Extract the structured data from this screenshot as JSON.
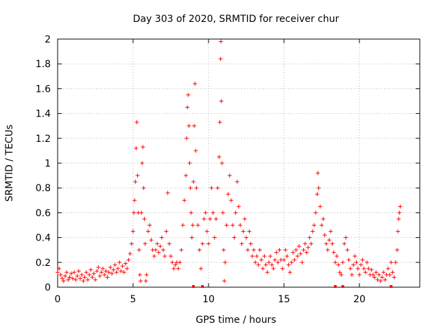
{
  "chart_data": {
    "type": "scatter",
    "title": "Day 303 of 2020, SRMTID for receiver chur",
    "xlabel": "GPS time / hours",
    "ylabel": "SRMTID / TECUs",
    "xlim": [
      0,
      24
    ],
    "ylim": [
      0,
      2
    ],
    "xticks": [
      0,
      5,
      10,
      15,
      20
    ],
    "xtick_labels": [
      "0",
      "5",
      "10",
      "15",
      "20"
    ],
    "yticks": [
      0,
      0.2,
      0.4,
      0.6,
      0.8,
      1,
      1.2,
      1.4,
      1.6,
      1.8,
      2
    ],
    "ytick_labels": [
      "0",
      "0.2",
      "0.4",
      "0.6",
      "0.8",
      "1",
      "1.2",
      "1.4",
      "1.6",
      "1.8",
      "2"
    ],
    "grid": true,
    "marker": "+",
    "series_color": "#ff0000",
    "series": [
      {
        "name": "SRMTID",
        "points": [
          [
            0.0,
            0.12
          ],
          [
            0.1,
            0.15
          ],
          [
            0.2,
            0.1
          ],
          [
            0.3,
            0.07
          ],
          [
            0.4,
            0.05
          ],
          [
            0.5,
            0.09
          ],
          [
            0.6,
            0.12
          ],
          [
            0.7,
            0.06
          ],
          [
            0.8,
            0.08
          ],
          [
            0.9,
            0.11
          ],
          [
            1.0,
            0.07
          ],
          [
            1.1,
            0.12
          ],
          [
            1.2,
            0.06
          ],
          [
            1.3,
            0.09
          ],
          [
            1.4,
            0.13
          ],
          [
            1.5,
            0.07
          ],
          [
            1.6,
            0.1
          ],
          [
            1.7,
            0.05
          ],
          [
            1.8,
            0.08
          ],
          [
            1.9,
            0.12
          ],
          [
            2.0,
            0.06
          ],
          [
            2.1,
            0.1
          ],
          [
            2.2,
            0.14
          ],
          [
            2.3,
            0.08
          ],
          [
            2.4,
            0.11
          ],
          [
            2.5,
            0.06
          ],
          [
            2.6,
            0.13
          ],
          [
            2.7,
            0.16
          ],
          [
            2.8,
            0.09
          ],
          [
            2.9,
            0.12
          ],
          [
            3.0,
            0.15
          ],
          [
            3.1,
            0.1
          ],
          [
            3.2,
            0.13
          ],
          [
            3.3,
            0.08
          ],
          [
            3.4,
            0.12
          ],
          [
            3.5,
            0.16
          ],
          [
            3.6,
            0.11
          ],
          [
            3.7,
            0.14
          ],
          [
            3.8,
            0.18
          ],
          [
            3.9,
            0.12
          ],
          [
            4.0,
            0.15
          ],
          [
            4.1,
            0.2
          ],
          [
            4.2,
            0.13
          ],
          [
            4.3,
            0.17
          ],
          [
            4.4,
            0.12
          ],
          [
            4.5,
            0.19
          ],
          [
            4.6,
            0.15
          ],
          [
            4.7,
            0.22
          ],
          [
            4.8,
            0.27
          ],
          [
            4.9,
            0.35
          ],
          [
            5.0,
            0.45
          ],
          [
            5.05,
            0.6
          ],
          [
            5.1,
            0.7
          ],
          [
            5.15,
            0.85
          ],
          [
            5.2,
            1.12
          ],
          [
            5.25,
            1.33
          ],
          [
            5.3,
            0.9
          ],
          [
            5.35,
            0.6
          ],
          [
            5.4,
            0.3
          ],
          [
            5.45,
            0.1
          ],
          [
            5.5,
            0.05
          ],
          [
            5.55,
            0.6
          ],
          [
            5.6,
            1.0
          ],
          [
            5.65,
            1.13
          ],
          [
            5.7,
            0.8
          ],
          [
            5.75,
            0.55
          ],
          [
            5.8,
            0.35
          ],
          [
            5.85,
            0.05
          ],
          [
            5.9,
            0.1
          ],
          [
            6.0,
            0.45
          ],
          [
            6.1,
            0.5
          ],
          [
            6.2,
            0.38
          ],
          [
            6.3,
            0.3
          ],
          [
            6.4,
            0.25
          ],
          [
            6.5,
            0.3
          ],
          [
            6.6,
            0.35
          ],
          [
            6.7,
            0.28
          ],
          [
            6.8,
            0.33
          ],
          [
            6.9,
            0.4
          ],
          [
            7.0,
            0.3
          ],
          [
            7.1,
            0.25
          ],
          [
            7.2,
            0.45
          ],
          [
            7.3,
            0.76
          ],
          [
            7.4,
            0.35
          ],
          [
            7.5,
            0.25
          ],
          [
            7.6,
            0.2
          ],
          [
            7.7,
            0.15
          ],
          [
            7.8,
            0.18
          ],
          [
            7.9,
            0.2
          ],
          [
            8.0,
            0.15
          ],
          [
            8.1,
            0.2
          ],
          [
            8.2,
            0.3
          ],
          [
            8.3,
            0.5
          ],
          [
            8.4,
            0.7
          ],
          [
            8.5,
            0.9
          ],
          [
            8.55,
            1.2
          ],
          [
            8.6,
            1.45
          ],
          [
            8.65,
            1.55
          ],
          [
            8.7,
            1.3
          ],
          [
            8.75,
            1.0
          ],
          [
            8.8,
            0.8
          ],
          [
            8.85,
            0.6
          ],
          [
            8.9,
            0.4
          ],
          [
            8.95,
            0.5
          ],
          [
            9.0,
            0.85
          ],
          [
            9.05,
            1.3
          ],
          [
            9.1,
            1.64
          ],
          [
            9.15,
            1.1
          ],
          [
            9.2,
            0.8
          ],
          [
            9.3,
            0.5
          ],
          [
            9.4,
            0.3
          ],
          [
            9.5,
            0.15
          ],
          [
            9.6,
            0.35
          ],
          [
            9.7,
            0.55
          ],
          [
            9.8,
            0.6
          ],
          [
            9.9,
            0.45
          ],
          [
            10.0,
            0.35
          ],
          [
            10.1,
            0.55
          ],
          [
            10.2,
            0.8
          ],
          [
            10.3,
            0.6
          ],
          [
            10.4,
            0.4
          ],
          [
            10.5,
            0.55
          ],
          [
            10.6,
            0.8
          ],
          [
            10.7,
            1.05
          ],
          [
            10.75,
            1.33
          ],
          [
            10.8,
            1.84
          ],
          [
            10.82,
            1.98
          ],
          [
            10.85,
            1.5
          ],
          [
            10.9,
            1.0
          ],
          [
            10.95,
            0.6
          ],
          [
            11.0,
            0.3
          ],
          [
            11.05,
            0.05
          ],
          [
            11.1,
            0.2
          ],
          [
            11.2,
            0.5
          ],
          [
            11.3,
            0.75
          ],
          [
            11.4,
            0.9
          ],
          [
            11.5,
            0.7
          ],
          [
            11.6,
            0.5
          ],
          [
            11.7,
            0.4
          ],
          [
            11.8,
            0.6
          ],
          [
            11.9,
            0.85
          ],
          [
            12.0,
            0.65
          ],
          [
            12.1,
            0.5
          ],
          [
            12.2,
            0.35
          ],
          [
            12.3,
            0.45
          ],
          [
            12.4,
            0.55
          ],
          [
            12.5,
            0.4
          ],
          [
            12.6,
            0.3
          ],
          [
            12.7,
            0.45
          ],
          [
            12.8,
            0.35
          ],
          [
            12.9,
            0.25
          ],
          [
            13.0,
            0.3
          ],
          [
            13.1,
            0.2
          ],
          [
            13.2,
            0.25
          ],
          [
            13.3,
            0.18
          ],
          [
            13.4,
            0.3
          ],
          [
            13.5,
            0.22
          ],
          [
            13.6,
            0.15
          ],
          [
            13.7,
            0.25
          ],
          [
            13.8,
            0.18
          ],
          [
            13.9,
            0.12
          ],
          [
            14.0,
            0.2
          ],
          [
            14.1,
            0.25
          ],
          [
            14.2,
            0.18
          ],
          [
            14.3,
            0.15
          ],
          [
            14.4,
            0.22
          ],
          [
            14.5,
            0.28
          ],
          [
            14.6,
            0.2
          ],
          [
            14.7,
            0.3
          ],
          [
            14.8,
            0.22
          ],
          [
            14.9,
            0.15
          ],
          [
            15.0,
            0.22
          ],
          [
            15.1,
            0.3
          ],
          [
            15.2,
            0.25
          ],
          [
            15.3,
            0.18
          ],
          [
            15.4,
            0.12
          ],
          [
            15.5,
            0.2
          ],
          [
            15.6,
            0.28
          ],
          [
            15.7,
            0.22
          ],
          [
            15.8,
            0.3
          ],
          [
            15.9,
            0.25
          ],
          [
            16.0,
            0.33
          ],
          [
            16.1,
            0.27
          ],
          [
            16.2,
            0.2
          ],
          [
            16.3,
            0.3
          ],
          [
            16.4,
            0.35
          ],
          [
            16.5,
            0.28
          ],
          [
            16.6,
            0.32
          ],
          [
            16.7,
            0.4
          ],
          [
            16.8,
            0.35
          ],
          [
            16.9,
            0.45
          ],
          [
            17.0,
            0.5
          ],
          [
            17.1,
            0.6
          ],
          [
            17.2,
            0.75
          ],
          [
            17.25,
            0.92
          ],
          [
            17.3,
            0.8
          ],
          [
            17.4,
            0.65
          ],
          [
            17.5,
            0.5
          ],
          [
            17.6,
            0.55
          ],
          [
            17.7,
            0.42
          ],
          [
            17.8,
            0.35
          ],
          [
            17.9,
            0.3
          ],
          [
            18.0,
            0.38
          ],
          [
            18.1,
            0.45
          ],
          [
            18.2,
            0.35
          ],
          [
            18.3,
            0.28
          ],
          [
            18.4,
            0.2
          ],
          [
            18.5,
            0.25
          ],
          [
            18.6,
            0.18
          ],
          [
            18.7,
            0.12
          ],
          [
            18.8,
            0.1
          ],
          [
            18.9,
            0.2
          ],
          [
            19.0,
            0.35
          ],
          [
            19.1,
            0.4
          ],
          [
            19.2,
            0.3
          ],
          [
            19.3,
            0.22
          ],
          [
            19.4,
            0.15
          ],
          [
            19.5,
            0.1
          ],
          [
            19.6,
            0.18
          ],
          [
            19.7,
            0.25
          ],
          [
            19.8,
            0.2
          ],
          [
            19.9,
            0.15
          ],
          [
            20.0,
            0.1
          ],
          [
            20.1,
            0.18
          ],
          [
            20.2,
            0.22
          ],
          [
            20.3,
            0.15
          ],
          [
            20.4,
            0.12
          ],
          [
            20.5,
            0.2
          ],
          [
            20.6,
            0.15
          ],
          [
            20.7,
            0.1
          ],
          [
            20.8,
            0.14
          ],
          [
            20.9,
            0.1
          ],
          [
            21.0,
            0.08
          ],
          [
            21.1,
            0.12
          ],
          [
            21.2,
            0.06
          ],
          [
            21.3,
            0.1
          ],
          [
            21.4,
            0.05
          ],
          [
            21.5,
            0.08
          ],
          [
            21.6,
            0.12
          ],
          [
            21.7,
            0.06
          ],
          [
            21.8,
            0.1
          ],
          [
            21.9,
            0.15
          ],
          [
            22.0,
            0.1
          ],
          [
            22.1,
            0.2
          ],
          [
            22.2,
            0.12
          ],
          [
            22.3,
            0.08
          ],
          [
            22.4,
            0.2
          ],
          [
            22.5,
            0.3
          ],
          [
            22.55,
            0.45
          ],
          [
            22.6,
            0.55
          ],
          [
            22.65,
            0.6
          ],
          [
            22.7,
            0.65
          ]
        ]
      }
    ]
  }
}
